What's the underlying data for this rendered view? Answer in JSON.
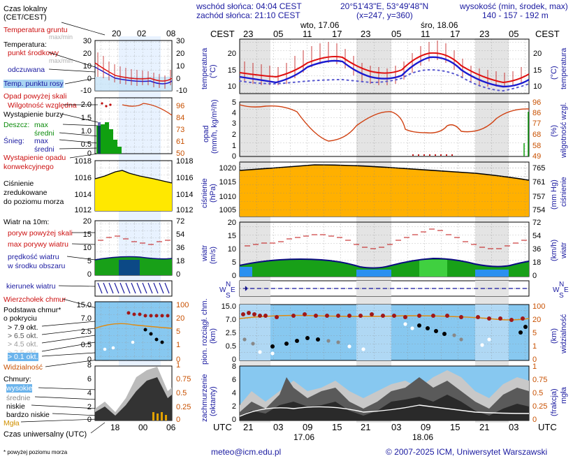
{
  "header": {
    "sunrise": "wschód słońca: 04:04 CEST",
    "sunset": "zachód słońca: 21:10 CEST",
    "coords": "20°51'43\"E, 53°49'48\"N",
    "grid": "(x=247, y=360)",
    "altitude_title": "wysokość (min, środek, max)",
    "altitude_values": "140 - 157 - 192 m"
  },
  "left": {
    "czas_lokalny": "Czas lokalny",
    "cet_cest": "(CET/CEST)",
    "temp_gruntu": "Temperatura gruntu",
    "max_min": "max/min",
    "temperatura": "Temperatura:",
    "punkt_srodkowy": "punkt środkowy",
    "max_min2": "max/min",
    "odczuwana": "odczuwana",
    "temp_rosy": "Temp. punktu rosy",
    "opad_powyzej": "Opad powyżej skali",
    "wilgotnosc": "Wilgotność względna",
    "burza": "Wystąpienie burzy",
    "deszcz": "Deszcz:",
    "max": "max",
    "sredni": "średni",
    "snieg": "Śnieg:",
    "max2": "max",
    "sredni2": "średni",
    "wystapienie_opadu": "Wystąpienie opadu",
    "konwekcyjnego": "konwekcyjnego",
    "cisnienie": "Ciśnienie",
    "zredukowane": "zredukowane",
    "do_poziomu": "do poziomu morza",
    "wiatr10": "Wiatr na 10m:",
    "poryw_powyzej": "poryw powyżej skali",
    "max_porywy": "max porywy wiatru",
    "predkosc": "prędkość wiatru",
    "w_srodku": "w środku obszaru",
    "kierunek": "kierunek wiatru",
    "wierzcholek": "Wierzchołek chmur",
    "podstawa": "Podstawa chmur*",
    "o_pokryciu": "o pokryciu",
    "okt79": "> 7.9 okt.",
    "okt65": "> 6.5 okt.",
    "okt45": "> 4.5 okt.",
    "okt25": "> 2.5 okt.",
    "okt01": "> 0.1 okt.",
    "widzialnosc": "Widzialność",
    "chmury": "Chmury:",
    "wysokie": "wysokie",
    "srednie": "średnie",
    "niskie": "niskie",
    "bardzo_niskie": "bardzo niskie",
    "mgla": "Mgła",
    "czas_uniwersalny": "Czas uniwersalny (UTC)",
    "footnote": "* powyżej poziomu morza"
  },
  "mini": {
    "top_ticks": [
      "20",
      "02",
      "08"
    ],
    "bottom_ticks": [
      "18",
      "00",
      "06"
    ],
    "temp_ticks": [
      "30",
      "20",
      "10",
      "0",
      "-10"
    ],
    "precip_ticks": [
      "2.0",
      "1.5",
      "1.0",
      "0.5",
      "0"
    ],
    "hum_ticks": [
      "96",
      "84",
      "73",
      "61",
      "50"
    ],
    "press_ticks": [
      "1018",
      "1016",
      "1014",
      "1012"
    ],
    "wind_ticks_ms": [
      "20",
      "15",
      "10",
      "5",
      "0"
    ],
    "wind_ticks_kmh": [
      "72",
      "54",
      "36",
      "18",
      "0"
    ],
    "cloud_ticks": [
      "15.0",
      "7.0",
      "2.5",
      "0.5",
      "0"
    ],
    "vis_ticks": [
      "100",
      "20",
      "5",
      "1",
      "0"
    ],
    "oct_ticks": [
      "8",
      "6",
      "4",
      "2",
      "0"
    ],
    "frac_ticks": [
      "1",
      "0.75",
      "0.5",
      "0.25",
      "0"
    ]
  },
  "main": {
    "cest": "CEST",
    "day1": "wto, 17.06",
    "day2": "śro, 18.06",
    "top_ticks": [
      "23",
      "05",
      "11",
      "17",
      "23",
      "05",
      "11",
      "17",
      "23",
      "05"
    ],
    "utc": "UTC",
    "bottom_ticks": [
      "21",
      "03",
      "09",
      "15",
      "21",
      "03",
      "09",
      "15",
      "21",
      "03"
    ],
    "bottom_day1": "17.06",
    "bottom_day2": "18.06",
    "temp_label": "temperatura",
    "temp_unit": "(°C)",
    "temp_ticks": [
      "20",
      "15",
      "10"
    ],
    "precip_label": "opad",
    "precip_unit": "(mm/h, kg/m²/h)",
    "precip_ticks": [
      "5",
      "4",
      "3",
      "2",
      "1",
      "0"
    ],
    "hum_label": "wilgotność wzgl.",
    "hum_unit": "(%)",
    "hum_ticks": [
      "96",
      "86",
      "77",
      "68",
      "58",
      "49"
    ],
    "press_label": "ciśnienie",
    "press_unit": "(hPa)",
    "press_ticks": [
      "1020",
      "1015",
      "1010",
      "1005"
    ],
    "press_mm_unit": "(mm Hg)",
    "press_mm_ticks": [
      "765",
      "761",
      "757",
      "754"
    ],
    "wind_label": "wiatr",
    "wind_unit": "(m/s)",
    "wind_ticks": [
      "20",
      "15",
      "10",
      "5",
      "0"
    ],
    "wind_kmh_unit": "(km/h)",
    "wind_kmh_ticks": [
      "72",
      "54",
      "36",
      "18",
      "0"
    ],
    "cloud_label": "pion. rozciągł. chm.",
    "cloud_unit": "(km)",
    "cloud_ticks": [
      "15.0",
      "7.0",
      "2.5",
      "0.5",
      "0"
    ],
    "vis_label": "widzialność",
    "vis_unit": "(km)",
    "vis_ticks": [
      "100",
      "20",
      "5",
      "1",
      "0"
    ],
    "cover_label": "zachmurzenie",
    "cover_unit": "(oktanty)",
    "cover_ticks": [
      "8",
      "6",
      "4",
      "2",
      "0"
    ],
    "fog_label": "mgła",
    "fog_unit": "(frakcja)",
    "fog_ticks": [
      "1",
      "0.75",
      "0.5",
      "0.25",
      "0"
    ],
    "compass": {
      "n": "N",
      "w": "W",
      "e": "E",
      "s": "S"
    }
  },
  "footer": {
    "email": "meteo@icm.edu.pl",
    "copyright": "© 2007-2025 ICM, Uniwersytet Warszawski"
  },
  "colors": {
    "temp": "#e01010",
    "feel": "#1a1ad0",
    "dew": "#5a5ad0",
    "humidity": "#d04010",
    "pressure_fill": "#ffd200",
    "wind_fill": "#1ab01a",
    "sky": "#87c8f0"
  }
}
